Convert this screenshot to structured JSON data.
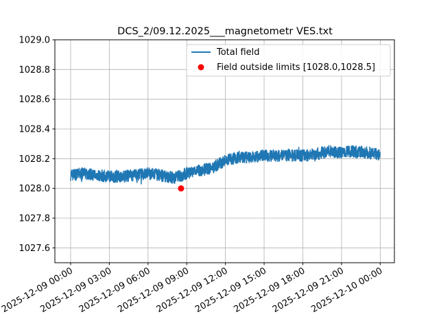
{
  "chart_data": {
    "type": "line",
    "title": "DCS_2/09.12.2025___magnetometr VES.txt",
    "xlabel": "",
    "ylabel": "",
    "ylim": [
      1027.5,
      1029.0
    ],
    "xlim_hours": [
      -1.22,
      25.1
    ],
    "grid": true,
    "legend_placement": "top-right",
    "x_ticks_hours": [
      0,
      3,
      6,
      9,
      12,
      15,
      18,
      21,
      24
    ],
    "x_tick_labels": [
      "2025-12-09 00:00",
      "2025-12-09 03:00",
      "2025-12-09 06:00",
      "2025-12-09 09:00",
      "2025-12-09 12:00",
      "2025-12-09 15:00",
      "2025-12-09 18:00",
      "2025-12-09 21:00",
      "2025-12-10 00:00"
    ],
    "y_ticks": [
      1027.6,
      1027.8,
      1028.0,
      1028.2,
      1028.4,
      1028.6,
      1028.8,
      1029.0
    ],
    "y_tick_labels": [
      "1027.6",
      "1027.8",
      "1028.0",
      "1028.2",
      "1028.4",
      "1028.6",
      "1028.8",
      "1029.0"
    ],
    "series": [
      {
        "name": "Total field",
        "color": "#1f77b4",
        "x_hours": [
          0,
          1,
          2,
          3,
          4,
          5,
          6,
          7,
          8,
          9,
          10,
          11,
          12,
          13,
          14,
          15,
          16,
          17,
          18,
          19,
          20,
          21,
          22,
          23,
          24
        ],
        "values": [
          1028.09,
          1028.1,
          1028.09,
          1028.08,
          1028.08,
          1028.09,
          1028.1,
          1028.09,
          1028.07,
          1028.1,
          1028.12,
          1028.14,
          1028.19,
          1028.21,
          1028.21,
          1028.22,
          1028.22,
          1028.22,
          1028.22,
          1028.23,
          1028.25,
          1028.24,
          1028.25,
          1028.24,
          1028.23
        ],
        "noise_amplitude": 0.04
      }
    ],
    "outliers": {
      "name": "Field outside limits [1028.0,1028.5]",
      "color": "#ff0000",
      "x_hours": [
        8.56
      ],
      "values": [
        1028.0
      ]
    }
  }
}
